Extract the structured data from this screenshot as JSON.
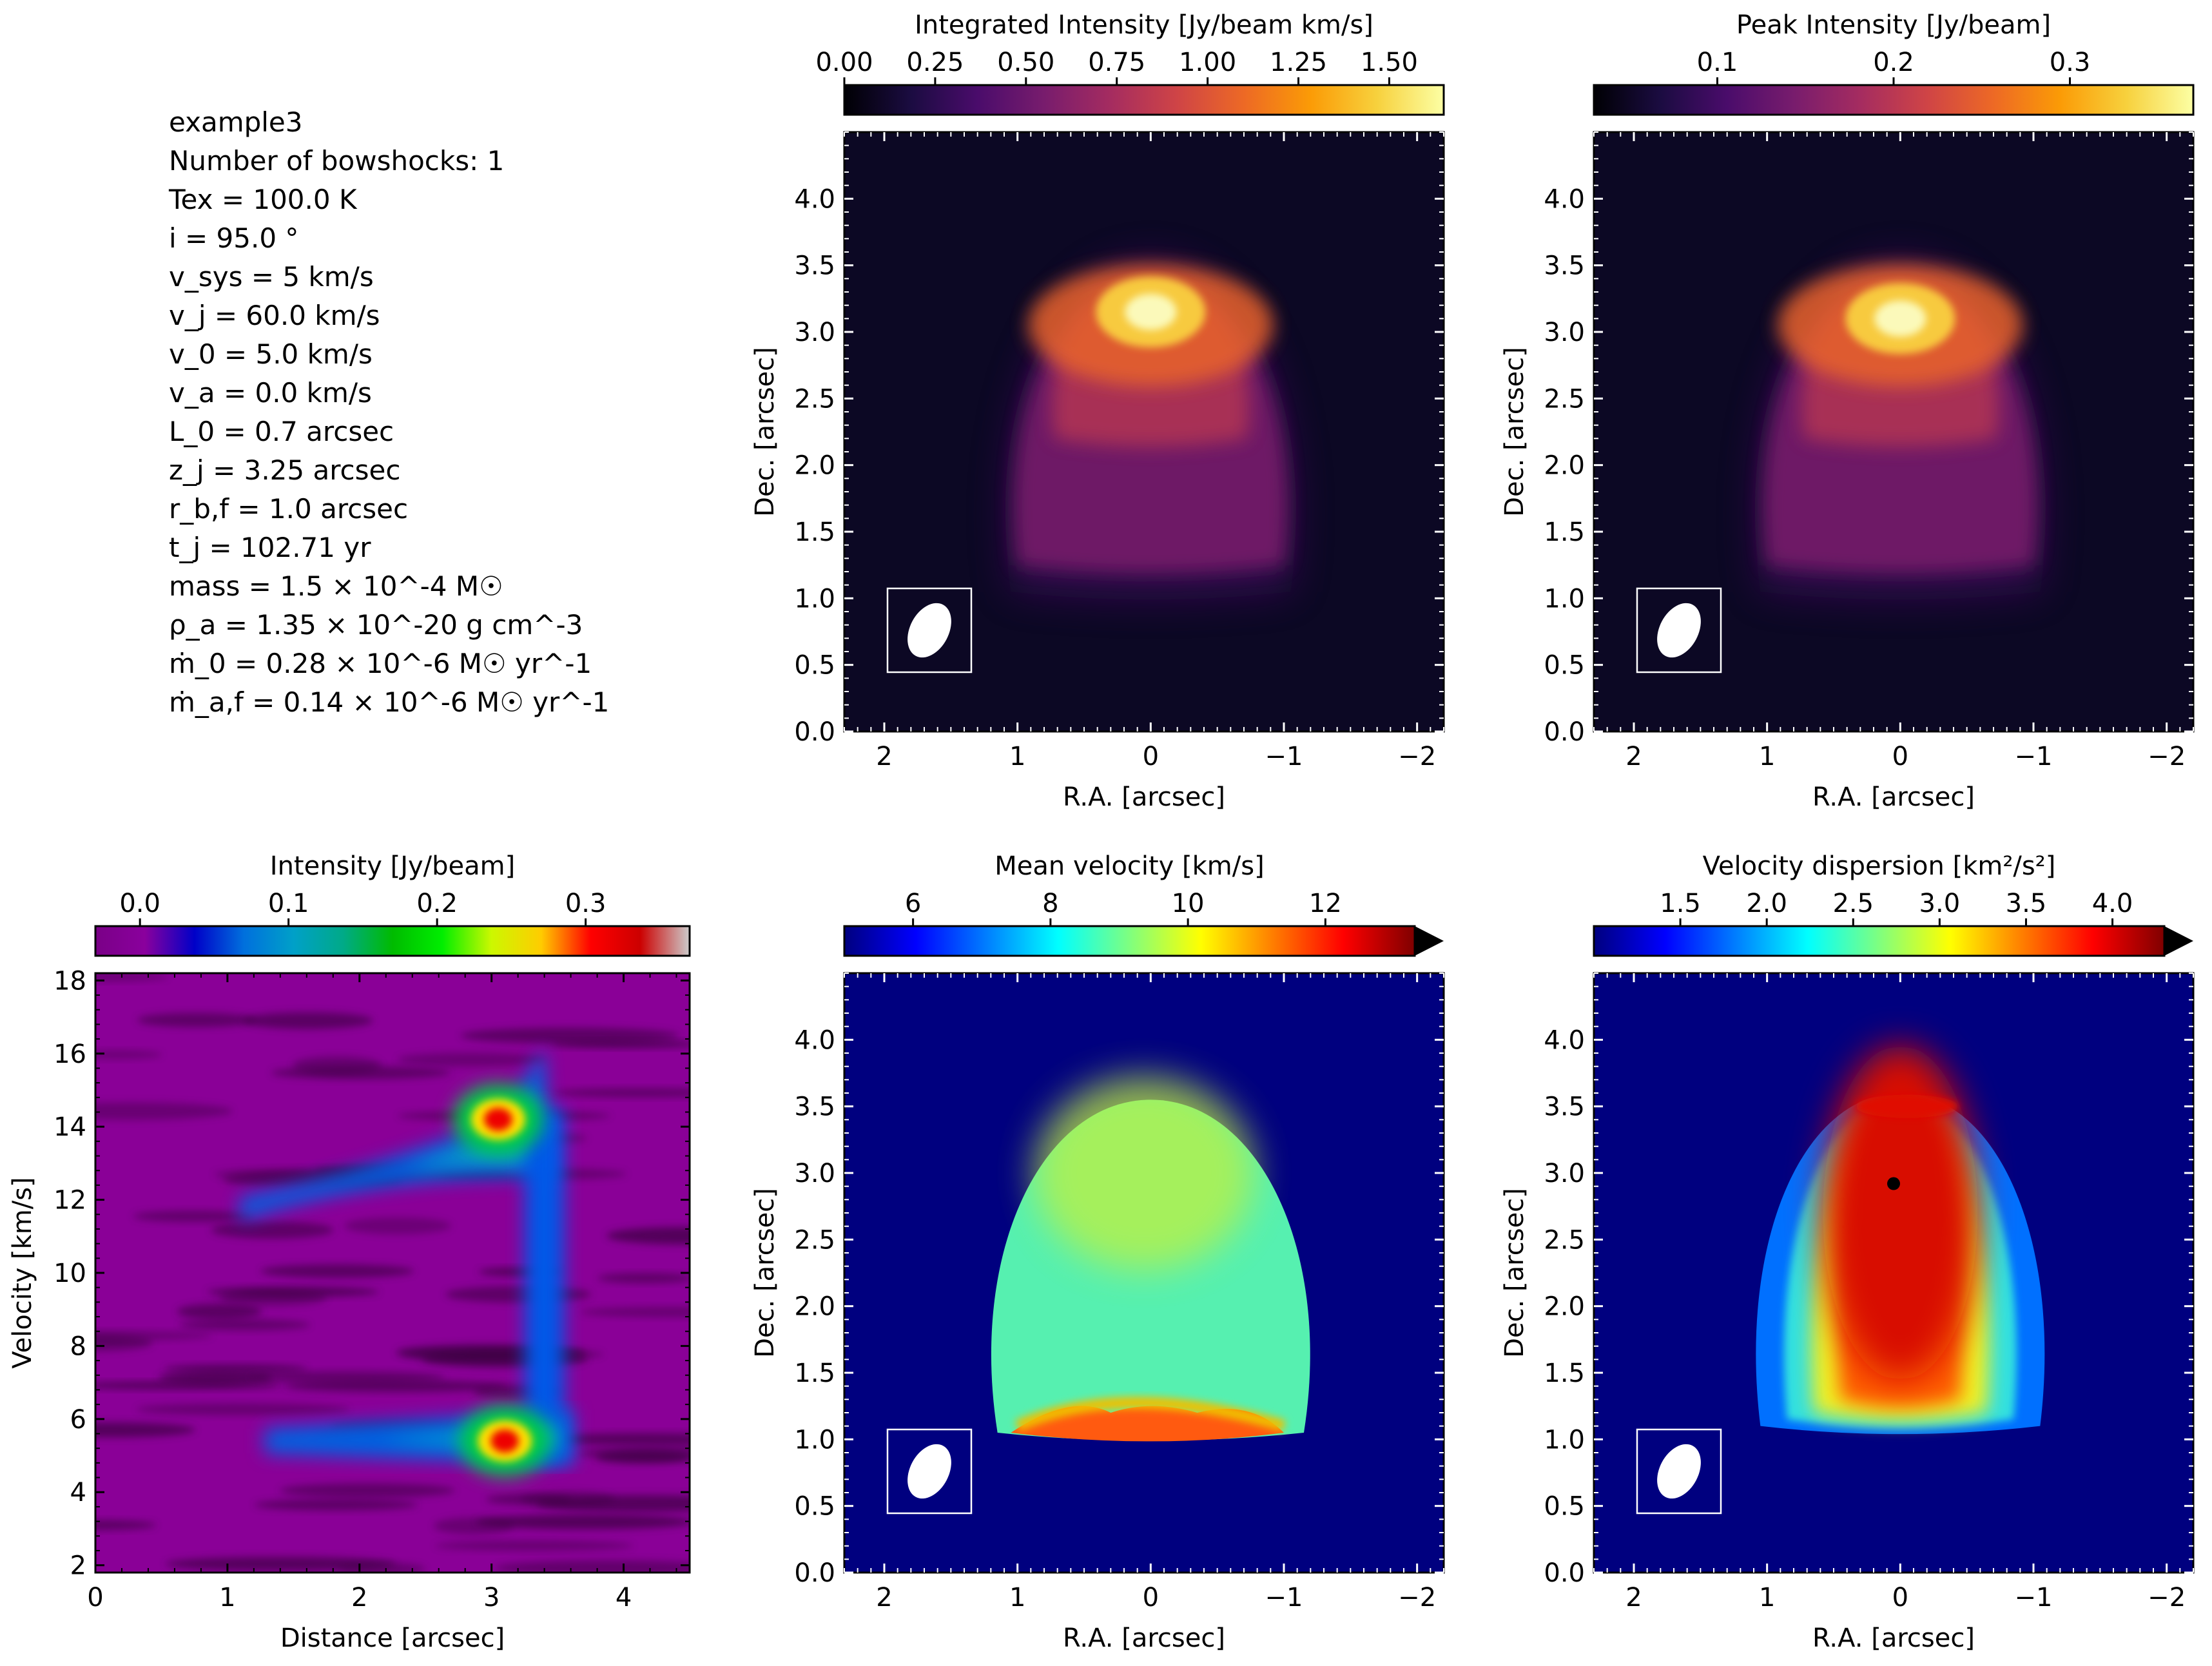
{
  "info_lines": [
    "example3",
    "Number of bowshocks: 1",
    "Tex = 100.0 K",
    "i = 95.0 °",
    "v_sys = 5 km/s",
    "v_j = 60.0 km/s",
    "v_0 = 5.0 km/s",
    "v_a = 0.0 km/s",
    "L_0 = 0.7 arcsec",
    "z_j = 3.25 arcsec",
    "r_b,f = 1.0 arcsec",
    "t_j = 102.71 yr",
    "mass = 1.5 × 10^-4 M☉",
    "ρ_a = 1.35 × 10^-20 g cm^-3",
    "ṁ_0 = 0.28 × 10^-6 M☉ yr^-1",
    "ṁ_a,f = 0.14 × 10^-6 M☉ yr^-1"
  ],
  "colormaps": {
    "inferno": [
      "#000004",
      "#1b0c41",
      "#4a0c6b",
      "#781c6d",
      "#a52c60",
      "#cf4446",
      "#ed6925",
      "#fb9b06",
      "#f7d13d",
      "#fcffa4"
    ],
    "spectral": [
      "#7a0087",
      "#8a009d",
      "#0000c8",
      "#0070dd",
      "#00a0c8",
      "#00aa88",
      "#00bb00",
      "#00ee00",
      "#ccf800",
      "#ffcc00",
      "#ff0000",
      "#cc0000",
      "#cccccc"
    ],
    "jet": [
      "#00007f",
      "#0000ff",
      "#007fff",
      "#00ffff",
      "#7fff7f",
      "#ffff00",
      "#ff7f00",
      "#ff0000",
      "#7f0000"
    ]
  },
  "chart_data": [
    {
      "id": "mom0",
      "type": "heatmap",
      "title": "",
      "colorbar_label": "Integrated Intensity [Jy/beam km/s]",
      "colorbar_ticks": [
        "0.00",
        "0.25",
        "0.50",
        "0.75",
        "1.00",
        "1.25",
        "1.50"
      ],
      "colorbar_range": [
        0,
        1.65
      ],
      "colormap": "inferno",
      "colorbar_extend": false,
      "xlabel": "R.A. [arcsec]",
      "ylabel": "Dec. [arcsec]",
      "xlim": [
        2.3,
        -2.2
      ],
      "ylim": [
        0,
        4.5
      ],
      "xticks": [
        "2",
        "1",
        "0",
        "−1",
        "−2"
      ],
      "xtick_values": [
        2,
        1,
        0,
        -1,
        -2
      ],
      "yticks": [
        "0.0",
        "0.5",
        "1.0",
        "1.5",
        "2.0",
        "2.5",
        "3.0",
        "3.5",
        "4.0"
      ],
      "ytick_values": [
        0,
        0.5,
        1,
        1.5,
        2,
        2.5,
        3,
        3.5,
        4
      ],
      "peak_position": [
        0.0,
        3.15
      ],
      "peak_value": 1.65,
      "beam_box": true
    },
    {
      "id": "mom8",
      "type": "heatmap",
      "title": "",
      "colorbar_label": "Peak Intensity [Jy/beam]",
      "colorbar_ticks": [
        "0.1",
        "0.2",
        "0.3"
      ],
      "colorbar_range": [
        0.03,
        0.37
      ],
      "colormap": "inferno",
      "colorbar_extend": false,
      "xlabel": "R.A. [arcsec]",
      "ylabel": "Dec. [arcsec]",
      "xlim": [
        2.3,
        -2.2
      ],
      "ylim": [
        0,
        4.5
      ],
      "xticks": [
        "2",
        "1",
        "0",
        "−1",
        "−2"
      ],
      "xtick_values": [
        2,
        1,
        0,
        -1,
        -2
      ],
      "yticks": [
        "0.0",
        "0.5",
        "1.0",
        "1.5",
        "2.0",
        "2.5",
        "3.0",
        "3.5",
        "4.0"
      ],
      "ytick_values": [
        0,
        0.5,
        1,
        1.5,
        2,
        2.5,
        3,
        3.5,
        4
      ],
      "peak_position": [
        0.0,
        3.1
      ],
      "peak_value": 0.37,
      "beam_box": true
    },
    {
      "id": "pv",
      "type": "heatmap",
      "title": "",
      "colorbar_label": "Intensity [Jy/beam]",
      "colorbar_ticks": [
        "0.0",
        "0.1",
        "0.2",
        "0.3"
      ],
      "colorbar_range": [
        -0.03,
        0.37
      ],
      "colormap": "spectral",
      "colorbar_extend": false,
      "xlabel": "Distance [arcsec]",
      "ylabel": "Velocity [km/s]",
      "xlim": [
        0,
        4.5
      ],
      "ylim": [
        1.8,
        18.2
      ],
      "xticks": [
        "0",
        "1",
        "2",
        "3",
        "4"
      ],
      "xtick_values": [
        0,
        1,
        2,
        3,
        4
      ],
      "yticks": [
        "2",
        "4",
        "6",
        "8",
        "10",
        "12",
        "14",
        "16",
        "18"
      ],
      "ytick_values": [
        2,
        4,
        6,
        8,
        10,
        12,
        14,
        16,
        18
      ],
      "beam_box": false
    },
    {
      "id": "mom1",
      "type": "heatmap",
      "title": "",
      "colorbar_label": "Mean velocity [km/s]",
      "colorbar_ticks": [
        "6",
        "8",
        "10",
        "12"
      ],
      "colorbar_range": [
        5.0,
        13.3
      ],
      "colormap": "jet",
      "colorbar_extend": true,
      "xlabel": "R.A. [arcsec]",
      "ylabel": "Dec. [arcsec]",
      "xlim": [
        2.3,
        -2.2
      ],
      "ylim": [
        0,
        4.5
      ],
      "xticks": [
        "2",
        "1",
        "0",
        "−1",
        "−2"
      ],
      "xtick_values": [
        2,
        1,
        0,
        -1,
        -2
      ],
      "yticks": [
        "0.0",
        "0.5",
        "1.0",
        "1.5",
        "2.0",
        "2.5",
        "3.0",
        "3.5",
        "4.0"
      ],
      "ytick_values": [
        0,
        0.5,
        1,
        1.5,
        2,
        2.5,
        3,
        3.5,
        4
      ],
      "beam_box": true
    },
    {
      "id": "mom2",
      "type": "heatmap",
      "title": "",
      "colorbar_label": "Velocity dispersion [km²/s²]",
      "colorbar_ticks": [
        "1.5",
        "2.0",
        "2.5",
        "3.0",
        "3.5",
        "4.0"
      ],
      "colorbar_range": [
        1.0,
        4.3
      ],
      "colormap": "jet",
      "colorbar_extend": true,
      "xlabel": "R.A. [arcsec]",
      "ylabel": "Dec. [arcsec]",
      "xlim": [
        2.3,
        -2.2
      ],
      "ylim": [
        0,
        4.5
      ],
      "xticks": [
        "2",
        "1",
        "0",
        "−1",
        "−2"
      ],
      "xtick_values": [
        2,
        1,
        0,
        -1,
        -2
      ],
      "yticks": [
        "0.0",
        "0.5",
        "1.0",
        "1.5",
        "2.0",
        "2.5",
        "3.0",
        "3.5",
        "4.0"
      ],
      "ytick_values": [
        0,
        0.5,
        1,
        1.5,
        2,
        2.5,
        3,
        3.5,
        4
      ],
      "beam_box": true
    }
  ]
}
